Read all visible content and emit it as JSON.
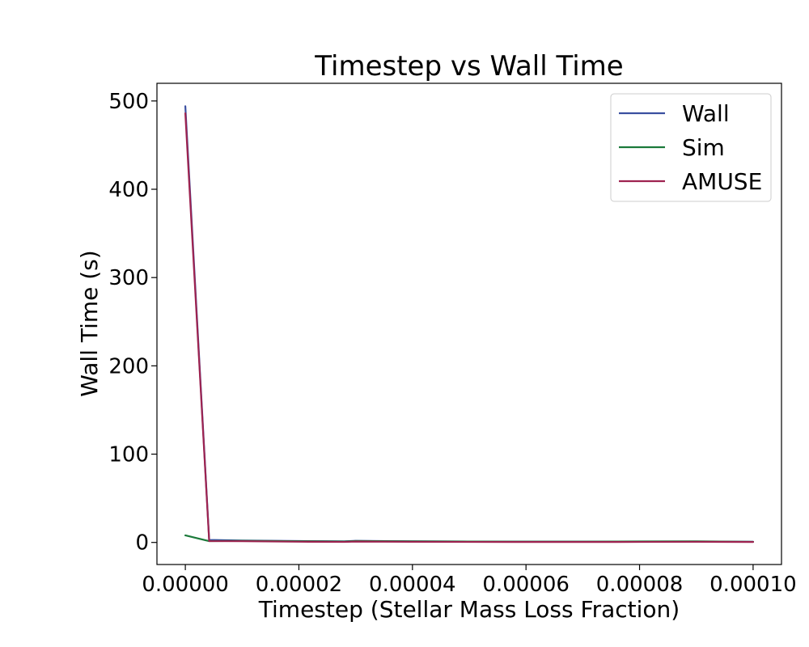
{
  "chart_data": {
    "type": "line",
    "title": "Timestep vs Wall Time",
    "xlabel": "Timestep (Stellar Mass Loss Fraction)",
    "ylabel": "Wall Time (s)",
    "xlim": [
      -5e-06,
      0.000105
    ],
    "ylim": [
      -25,
      520
    ],
    "xticks": [
      0,
      2e-05,
      4e-05,
      6e-05,
      8e-05,
      0.0001
    ],
    "xtick_labels": [
      "0.00000",
      "0.00002",
      "0.00004",
      "0.00006",
      "0.00008",
      "0.00010"
    ],
    "yticks": [
      0,
      100,
      200,
      300,
      400,
      500
    ],
    "ytick_labels": [
      "0",
      "100",
      "200",
      "300",
      "400",
      "500"
    ],
    "grid": false,
    "legend_position": "top-right",
    "series": [
      {
        "name": "Wall",
        "color": "#3a4fa0",
        "x": [
          0,
          4.2e-06,
          1e-05,
          2e-05,
          2.8e-05,
          3e-05,
          4e-05,
          5e-05,
          6e-05,
          7e-05,
          8e-05,
          9e-05,
          0.0001
        ],
        "y": [
          494,
          2.8,
          2.2,
          1.6,
          1.2,
          1.8,
          1.2,
          1.0,
          0.9,
          0.9,
          0.9,
          0.9,
          0.8
        ]
      },
      {
        "name": "Sim",
        "color": "#1b7a3a",
        "x": [
          0,
          4.2e-06,
          1e-05,
          2e-05,
          2.8e-05,
          3e-05,
          4e-05,
          5e-05,
          6e-05,
          7e-05,
          8e-05,
          9e-05,
          0.0001
        ],
        "y": [
          8,
          1.5,
          1.8,
          1.4,
          1.0,
          1.6,
          1.2,
          1.0,
          0.9,
          0.9,
          1.1,
          1.2,
          0.7
        ]
      },
      {
        "name": "AMUSE",
        "color": "#9e2350",
        "x": [
          0,
          4.2e-06,
          1e-05,
          2e-05,
          2.8e-05,
          3e-05,
          4e-05,
          5e-05,
          6e-05,
          7e-05,
          8e-05,
          9e-05,
          0.0001
        ],
        "y": [
          486,
          1.5,
          1.4,
          0.8,
          0.6,
          1.0,
          0.7,
          0.6,
          0.5,
          0.5,
          0.6,
          0.7,
          0.5
        ]
      }
    ]
  }
}
